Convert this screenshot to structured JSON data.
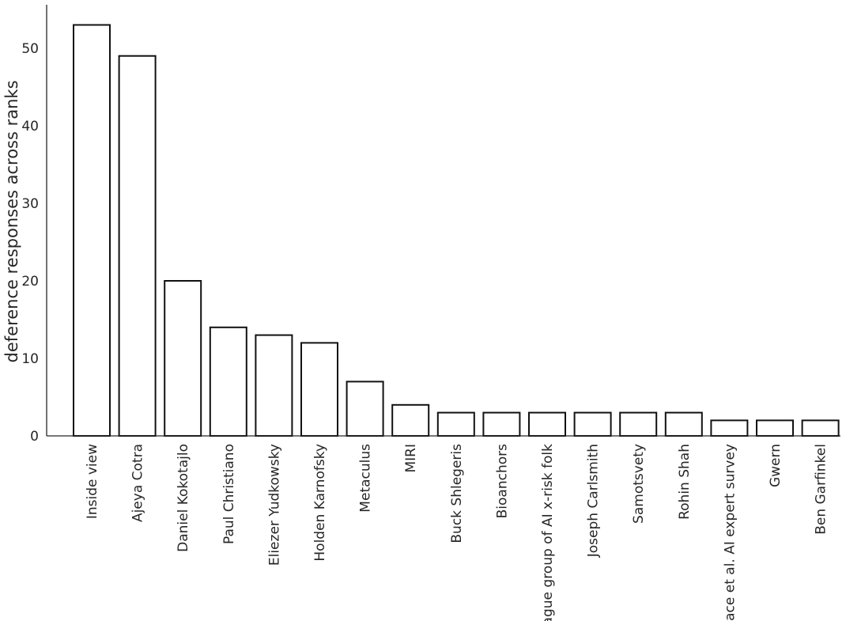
{
  "chart_data": {
    "type": "bar",
    "categories": [
      "Inside view",
      "Ajeya Cotra",
      "Daniel Kokotajlo",
      "Paul Christiano",
      "Eliezer Yudkowsky",
      "Holden Karnofsky",
      "Metaculus",
      "MIRI",
      "Buck Shlegeris",
      "Bioanchors",
      "Vague group of AI x-risk folk",
      "Joseph Carlsmith",
      "Samotsvety",
      "Rohin Shah",
      "Grace et al. AI expert survey",
      "Gwern",
      "Ben Garfinkel"
    ],
    "values": [
      53,
      49,
      20,
      14,
      13,
      12,
      7,
      4,
      3,
      3,
      3,
      3,
      3,
      3,
      2,
      2,
      2
    ],
    "ylabel": "deference responses across ranks",
    "xlabel": "",
    "ylim": [
      0,
      55.6
    ],
    "yticks": [
      0,
      10,
      20,
      30,
      40,
      50
    ],
    "grid": false,
    "bar_fill": "#ffffff",
    "bar_edge": "#111111"
  }
}
